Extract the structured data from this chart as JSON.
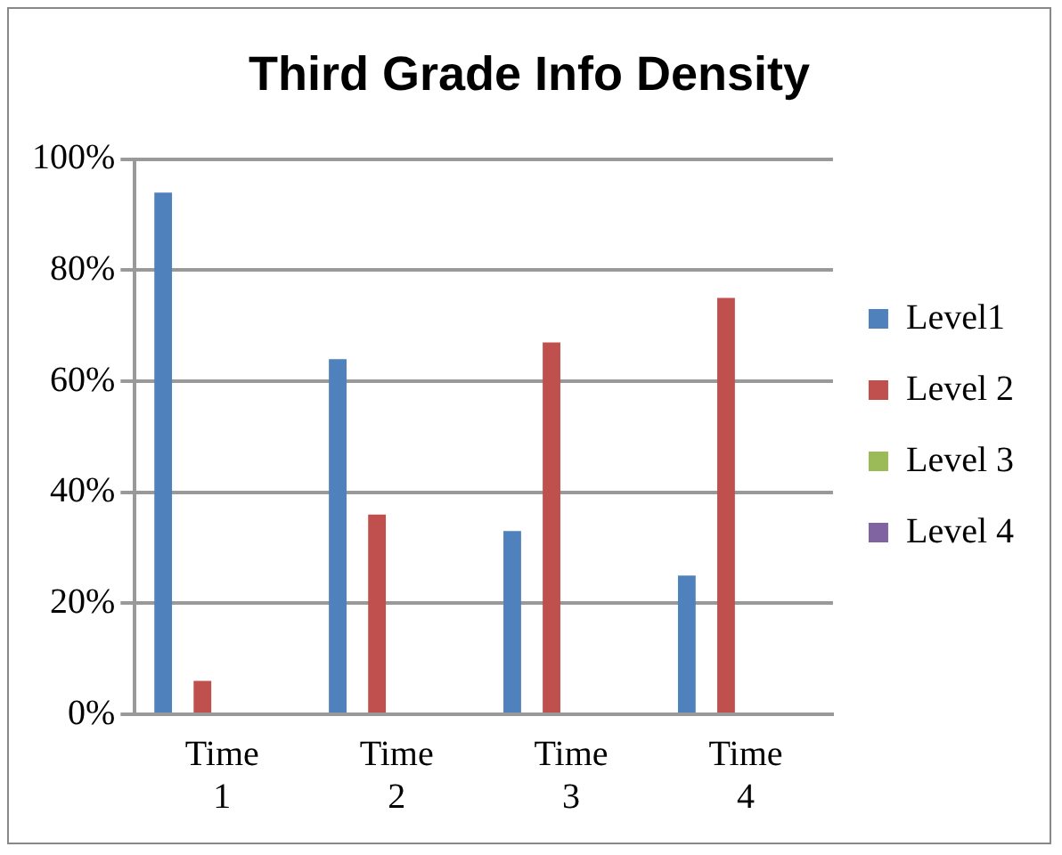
{
  "chart_data": {
    "type": "bar",
    "title": "Third Grade Info Density",
    "categories": [
      "Time 1",
      "Time 2",
      "Time 3",
      "Time 4"
    ],
    "series": [
      {
        "name": "Level1",
        "color": "#4f81bd",
        "values": [
          94,
          64,
          33,
          25
        ]
      },
      {
        "name": "Level 2",
        "color": "#c0504d",
        "values": [
          6,
          36,
          67,
          75
        ]
      },
      {
        "name": "Level 3",
        "color": "#9bbb59",
        "values": [
          0,
          0,
          0,
          0
        ]
      },
      {
        "name": "Level 4",
        "color": "#8064a2",
        "values": [
          0,
          0,
          0,
          0
        ]
      }
    ],
    "ylim": [
      0,
      100
    ],
    "yticks": [
      {
        "value": 0,
        "label": "0%"
      },
      {
        "value": 20,
        "label": "20%"
      },
      {
        "value": 40,
        "label": "40%"
      },
      {
        "value": 60,
        "label": "60%"
      },
      {
        "value": 80,
        "label": "80%"
      },
      {
        "value": 100,
        "label": "100%"
      }
    ],
    "grid": "y",
    "legend": "right"
  }
}
